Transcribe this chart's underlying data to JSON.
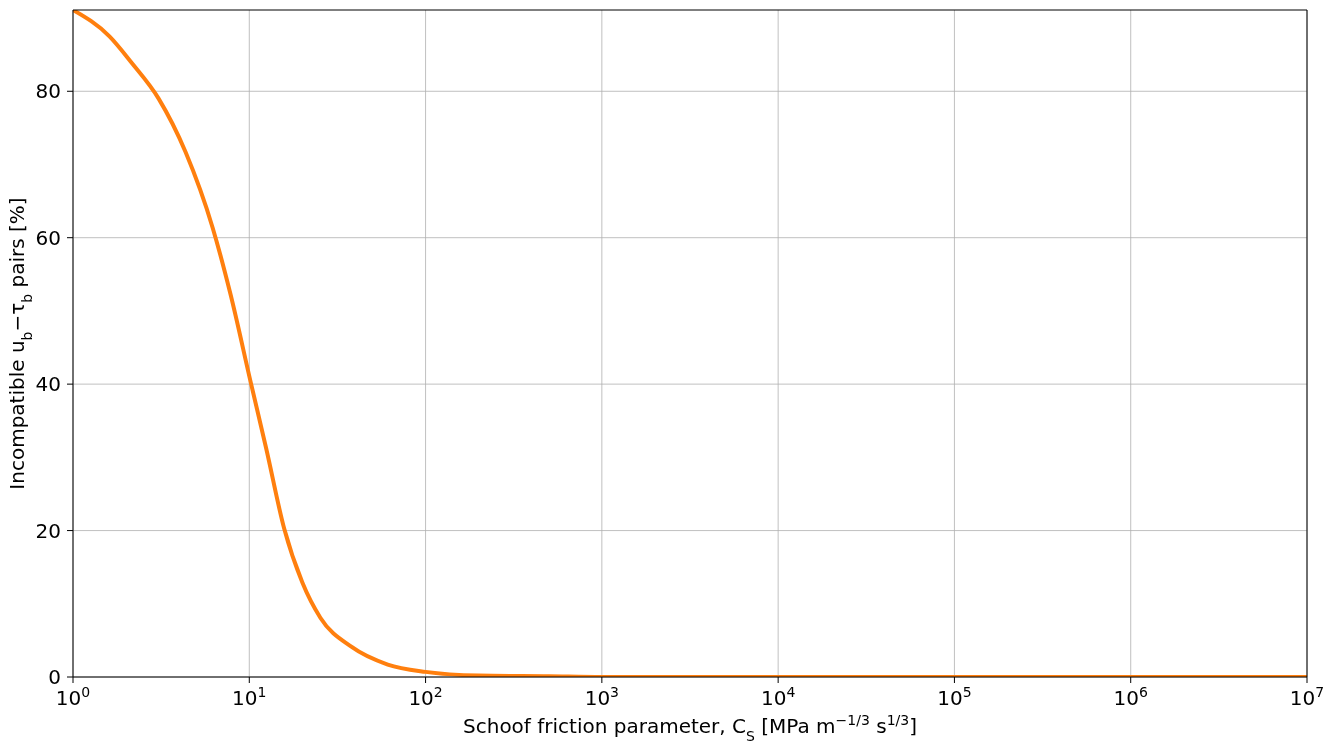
{
  "chart_data": {
    "type": "line",
    "xlabel": "Schoof friction parameter, C$_{S}$ [MPa m$^{−1/3}$ s$^{1/3}$]",
    "ylabel": "Incompatible u$_{b}$−τ$_{b}$ pairs [%]",
    "log": "x",
    "grid": true,
    "marker": "none",
    "line_style": "solid",
    "x": [
      1,
      1.61,
      2.15,
      3.06,
      4.35,
      6.19,
      7.82,
      10.2,
      12.5,
      15.8,
      20,
      25.3,
      38.1,
      61,
      100,
      200,
      500,
      1000,
      10000,
      100000,
      1000000,
      10000000
    ],
    "series": [
      {
        "color": "#ff7f0e",
        "values": [
          91.1,
          87.5,
          83.9,
          79.0,
          71.7,
          61.4,
          52.3,
          40.2,
          31.1,
          20.2,
          12.9,
          8.1,
          4.1,
          1.7,
          0.7,
          0.2,
          0.1,
          0,
          0,
          0,
          0,
          0
        ]
      }
    ],
    "xlim": [
      1,
      10000000
    ],
    "xticks": [
      {
        "value": 1,
        "label": "10$^{0}$"
      },
      {
        "value": 10,
        "label": "10$^{1}$"
      },
      {
        "value": 100,
        "label": "10$^{2}$"
      },
      {
        "value": 1000,
        "label": "10$^{3}$"
      },
      {
        "value": 10000,
        "label": "10$^{4}$"
      },
      {
        "value": 100000,
        "label": "10$^{5}$"
      },
      {
        "value": 1000000,
        "label": "10$^{6}$"
      },
      {
        "value": 10000000,
        "label": "10$^{7}$"
      }
    ],
    "ylim": [
      0,
      91.1
    ],
    "yticks": [
      0,
      20,
      40,
      60,
      80
    ]
  }
}
